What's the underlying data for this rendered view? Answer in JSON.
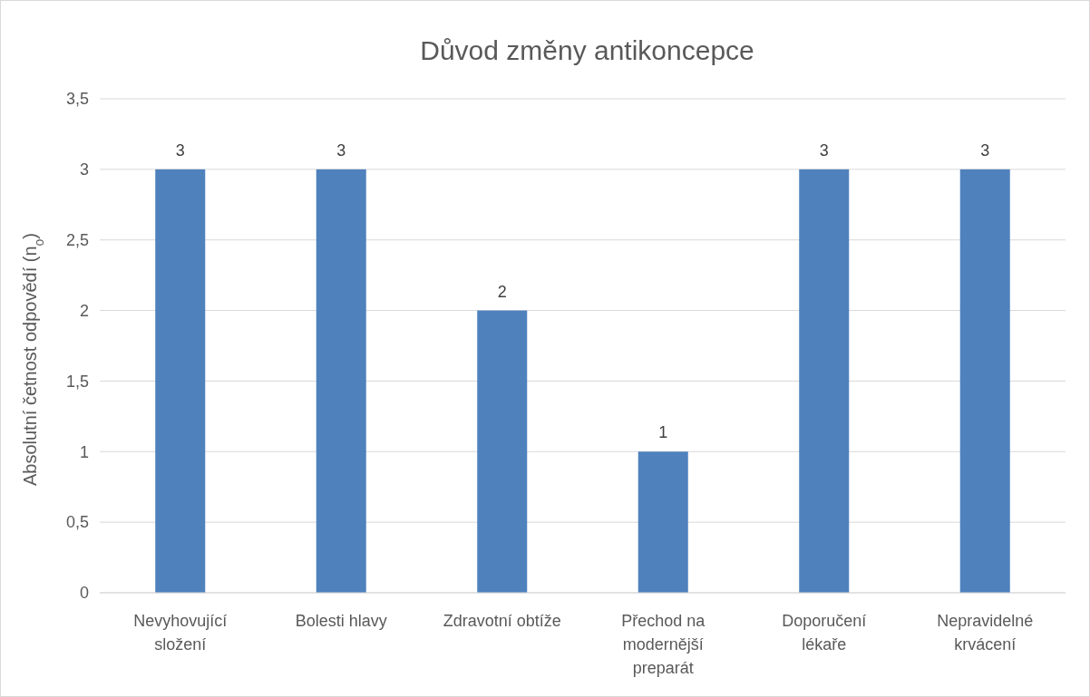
{
  "chart_data": {
    "type": "bar",
    "title": "Důvod změny antikoncepce",
    "ylabel": "Absolutní četnost odpovědí (n$_{o}$)",
    "categories": [
      "Nevyhovující složení",
      "Bolesti hlavy",
      "Zdravotní obtíže",
      "Přechod na modernější preparát",
      "Doporučení lékaře",
      "Nepravidelné krvácení"
    ],
    "values": [
      3,
      3,
      2,
      1,
      3,
      3
    ],
    "color": "#4f81bd",
    "ylim": [
      0,
      3.5
    ],
    "yticks": [
      0,
      {
        "value": 0.5,
        "label": "0,5"
      },
      1,
      {
        "value": 1.5,
        "label": "1,5"
      },
      2,
      {
        "value": 2.5,
        "label": "2,5"
      },
      3,
      {
        "value": 3.5,
        "label": "3,5"
      }
    ],
    "grid": "y",
    "data_labels": true
  }
}
